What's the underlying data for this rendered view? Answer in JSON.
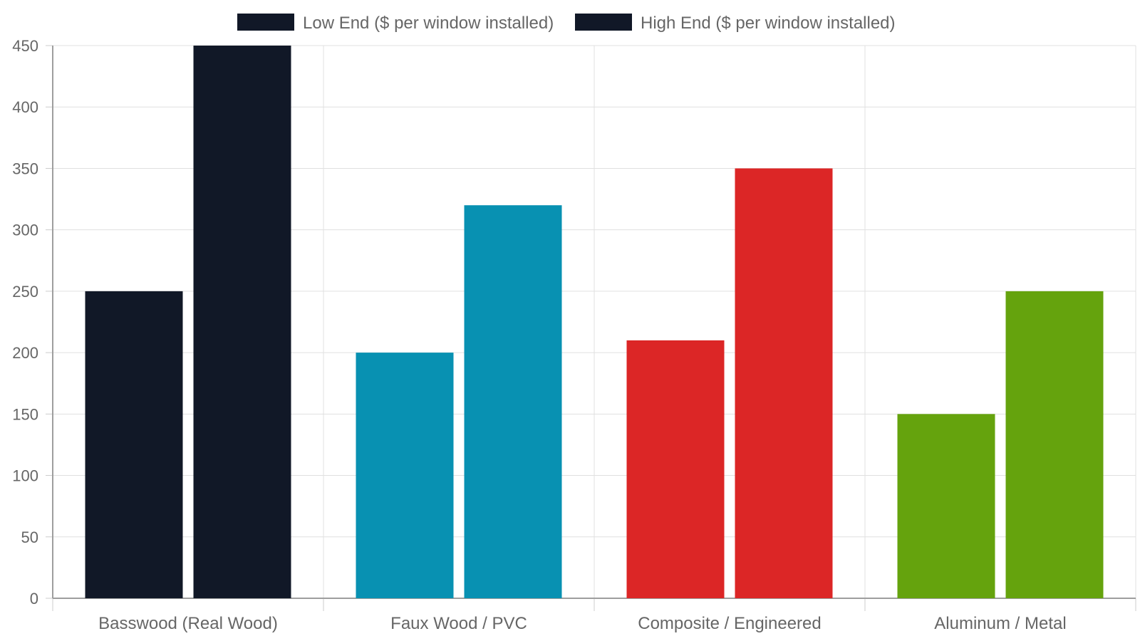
{
  "chart_data": {
    "type": "bar",
    "categories": [
      "Basswood (Real Wood)",
      "Faux Wood / PVC",
      "Composite / Engineered",
      "Aluminum / Metal"
    ],
    "series": [
      {
        "name": "Low End ($ per window installed)",
        "values": [
          250,
          200,
          210,
          150
        ]
      },
      {
        "name": "High End ($ per window installed)",
        "values": [
          450,
          320,
          350,
          250
        ]
      }
    ],
    "category_colors": [
      "#111827",
      "#0891b2",
      "#dc2626",
      "#65a30d"
    ],
    "legend_color": "#111827",
    "ylim": [
      0,
      450
    ],
    "yticks": [
      "0",
      "50",
      "100",
      "150",
      "200",
      "250",
      "300",
      "350",
      "400",
      "450"
    ],
    "grid": true,
    "legend_position": "top"
  }
}
